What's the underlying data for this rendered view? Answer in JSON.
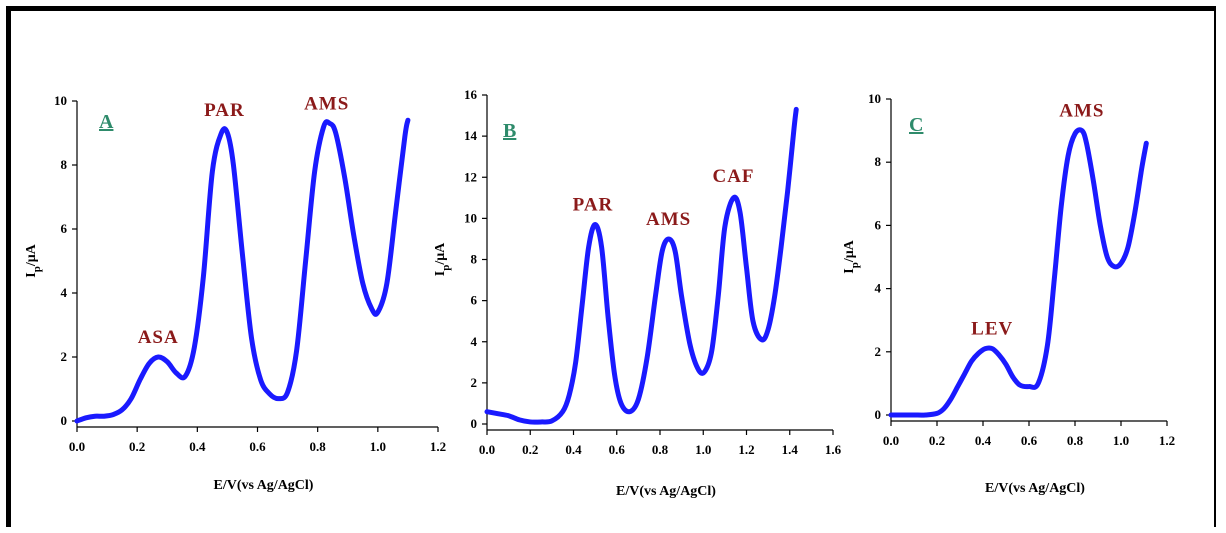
{
  "colors": {
    "curve": "#1a1aff",
    "label": "#8b1a1a",
    "panel_letter": "#2e8b6b",
    "axis": "#000000"
  },
  "chart_data": [
    {
      "type": "line",
      "panel": "A",
      "xlabel": "E/V(vs Ag/AgCl)",
      "ylabel": "Ip/μA",
      "ylabel_main": "I",
      "ylabel_sub": "p",
      "ylabel_rest": "/μA",
      "xlim": [
        0,
        1.2
      ],
      "ylim": [
        0,
        10
      ],
      "xticks": [
        "0.0",
        "0.2",
        "0.4",
        "0.6",
        "0.8",
        "1.0",
        "1.2"
      ],
      "yticks": [
        "0",
        "2",
        "4",
        "6",
        "8",
        "10"
      ],
      "annotations": [
        {
          "text": "ASA",
          "x": 0.27,
          "y": 2.0
        },
        {
          "text": "PAR",
          "x": 0.49,
          "y": 9.1
        },
        {
          "text": "AMS",
          "x": 0.83,
          "y": 9.3
        }
      ],
      "series": [
        {
          "x": [
            0.0,
            0.03,
            0.06,
            0.09,
            0.12,
            0.15,
            0.18,
            0.21,
            0.24,
            0.27,
            0.3,
            0.33,
            0.36,
            0.39,
            0.42,
            0.45,
            0.48,
            0.5,
            0.52,
            0.55,
            0.58,
            0.61,
            0.64,
            0.67,
            0.7,
            0.73,
            0.76,
            0.79,
            0.82,
            0.84,
            0.86,
            0.89,
            0.92,
            0.95,
            0.98,
            1.0,
            1.03,
            1.06,
            1.09,
            1.1
          ],
          "y": [
            0.0,
            0.1,
            0.15,
            0.15,
            0.2,
            0.35,
            0.7,
            1.3,
            1.8,
            2.0,
            1.85,
            1.5,
            1.4,
            2.3,
            4.5,
            7.8,
            9.0,
            9.0,
            8.0,
            5.2,
            2.6,
            1.3,
            0.85,
            0.7,
            0.9,
            2.2,
            5.0,
            7.8,
            9.2,
            9.3,
            9.0,
            7.6,
            5.8,
            4.3,
            3.5,
            3.4,
            4.3,
            6.6,
            8.9,
            9.4
          ]
        }
      ]
    },
    {
      "type": "line",
      "panel": "B",
      "xlabel": "E/V(vs Ag/AgCl)",
      "ylabel": "Ip/μA",
      "ylabel_main": "I",
      "ylabel_sub": "p",
      "ylabel_rest": "/μA",
      "xlim": [
        0,
        1.6
      ],
      "ylim": [
        0,
        16
      ],
      "xticks": [
        "0.0",
        "0.2",
        "0.4",
        "0.6",
        "0.8",
        "1.0",
        "1.2",
        "1.4",
        "1.6"
      ],
      "yticks": [
        "0",
        "2",
        "4",
        "6",
        "8",
        "10",
        "12",
        "14",
        "16"
      ],
      "annotations": [
        {
          "text": "PAR",
          "x": 0.49,
          "y": 9.7
        },
        {
          "text": "AMS",
          "x": 0.84,
          "y": 9.0
        },
        {
          "text": "CAF",
          "x": 1.14,
          "y": 11.1
        }
      ],
      "series": [
        {
          "x": [
            0.0,
            0.05,
            0.1,
            0.15,
            0.2,
            0.25,
            0.3,
            0.35,
            0.38,
            0.41,
            0.44,
            0.47,
            0.5,
            0.53,
            0.56,
            0.59,
            0.62,
            0.66,
            0.7,
            0.74,
            0.78,
            0.81,
            0.84,
            0.87,
            0.9,
            0.94,
            0.98,
            1.01,
            1.04,
            1.07,
            1.1,
            1.14,
            1.17,
            1.2,
            1.23,
            1.27,
            1.3,
            1.33,
            1.36,
            1.39,
            1.42,
            1.43
          ],
          "y": [
            0.6,
            0.5,
            0.4,
            0.2,
            0.1,
            0.1,
            0.15,
            0.6,
            1.4,
            3.0,
            5.8,
            8.6,
            9.7,
            8.6,
            5.2,
            2.4,
            1.0,
            0.6,
            1.2,
            3.2,
            6.3,
            8.4,
            9.0,
            8.4,
            6.2,
            3.8,
            2.6,
            2.6,
            3.6,
            6.3,
            9.6,
            11.0,
            10.3,
            7.6,
            5.0,
            4.1,
            4.6,
            6.2,
            8.6,
            11.3,
            14.4,
            15.3
          ]
        }
      ]
    },
    {
      "type": "line",
      "panel": "C",
      "xlabel": "E/V(vs Ag/AgCl)",
      "ylabel": "Ip/μA",
      "ylabel_main": "I",
      "ylabel_sub": "p",
      "ylabel_rest": "/μA",
      "xlim": [
        0,
        1.2
      ],
      "ylim": [
        0,
        10
      ],
      "xticks": [
        "0.0",
        "0.2",
        "0.4",
        "0.6",
        "0.8",
        "1.0",
        "1.2"
      ],
      "yticks": [
        "0",
        "2",
        "4",
        "6",
        "8",
        "10"
      ],
      "annotations": [
        {
          "text": "LEV",
          "x": 0.44,
          "y": 2.1
        },
        {
          "text": "AMS",
          "x": 0.83,
          "y": 9.0
        }
      ],
      "series": [
        {
          "x": [
            0.0,
            0.05,
            0.1,
            0.15,
            0.2,
            0.23,
            0.26,
            0.29,
            0.32,
            0.35,
            0.38,
            0.41,
            0.44,
            0.47,
            0.5,
            0.53,
            0.56,
            0.6,
            0.64,
            0.68,
            0.71,
            0.74,
            0.77,
            0.8,
            0.83,
            0.85,
            0.88,
            0.91,
            0.94,
            0.97,
            1.0,
            1.03,
            1.06,
            1.09,
            1.11
          ],
          "y": [
            0.0,
            0.0,
            0.0,
            0.0,
            0.05,
            0.2,
            0.5,
            0.9,
            1.3,
            1.7,
            1.95,
            2.1,
            2.1,
            1.9,
            1.6,
            1.2,
            0.95,
            0.9,
            1.0,
            2.2,
            4.3,
            6.6,
            8.2,
            8.9,
            9.0,
            8.6,
            7.4,
            6.0,
            5.0,
            4.7,
            4.8,
            5.3,
            6.4,
            7.8,
            8.6
          ]
        }
      ]
    }
  ]
}
